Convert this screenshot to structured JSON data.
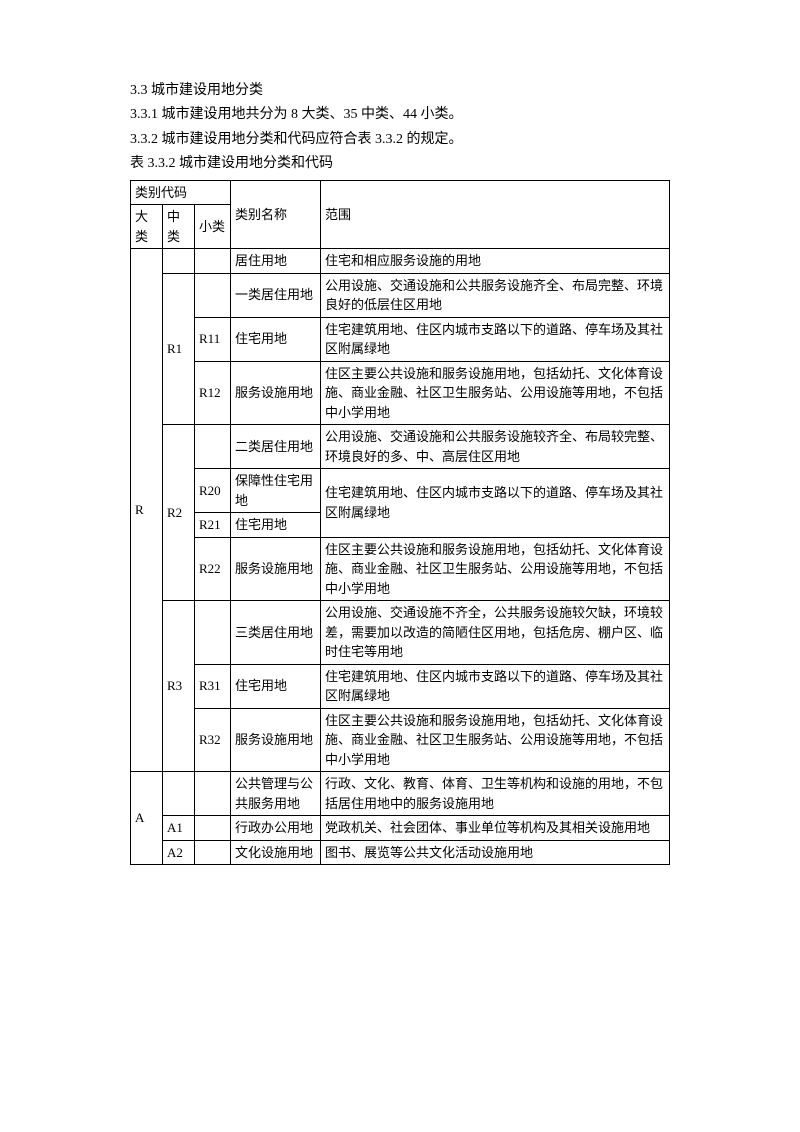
{
  "intro": {
    "l1": "3.3 城市建设用地分类",
    "l2": "3.3.1 城市建设用地共分为 8 大类、35 中类、44 小类。",
    "l3": "3.3.2 城市建设用地分类和代码应符合表 3.3.2 的规定。",
    "l4": "表 3.3.2 城市建设用地分类和代码"
  },
  "headers": {
    "code_group": "类别代码",
    "name": "类别名称",
    "scope": "范围",
    "da": "大类",
    "zhong": "中类",
    "xiao": "小类"
  },
  "table": {
    "R": {
      "code": "R",
      "name": "居住用地",
      "scope": "住宅和相应服务设施的用地",
      "R1": {
        "code": "R1",
        "name": "一类居住用地",
        "scope": "公用设施、交通设施和公共服务设施齐全、布局完整、环境良好的低层住区用地",
        "R11": {
          "code": "R11",
          "name": "住宅用地",
          "scope": "住宅建筑用地、住区内城市支路以下的道路、停车场及其社区附属绿地"
        },
        "R12": {
          "code": "R12",
          "name": "服务设施用地",
          "scope": "住区主要公共设施和服务设施用地，包括幼托、文化体育设施、商业金融、社区卫生服务站、公用设施等用地，不包括中小学用地"
        }
      },
      "R2": {
        "code": "R2",
        "name": "二类居住用地",
        "scope": "公用设施、交通设施和公共服务设施较齐全、布局较完整、环境良好的多、中、高层住区用地",
        "R20": {
          "code": "R20",
          "name": "保障性住宅用地",
          "scope": "住宅建筑用地、住区内城市支路以下的道路、停车场及其社区附属绿地"
        },
        "R21": {
          "code": "R21",
          "name": "住宅用地"
        },
        "R22": {
          "code": "R22",
          "name": "服务设施用地",
          "scope": "住区主要公共设施和服务设施用地，包括幼托、文化体育设施、商业金融、社区卫生服务站、公用设施等用地，不包括中小学用地"
        }
      },
      "R3": {
        "code": "R3",
        "name": "三类居住用地",
        "scope": "公用设施、交通设施不齐全，公共服务设施较欠缺，环境较差，需要加以改造的简陋住区用地，包括危房、棚户区、临时住宅等用地",
        "R31": {
          "code": "R31",
          "name": "住宅用地",
          "scope": "住宅建筑用地、住区内城市支路以下的道路、停车场及其社区附属绿地"
        },
        "R32": {
          "code": "R32",
          "name": "服务设施用地",
          "scope": "住区主要公共设施和服务设施用地，包括幼托、文化体育设施、商业金融、社区卫生服务站、公用设施等用地，不包括中小学用地"
        }
      }
    },
    "A": {
      "code": "A",
      "name": "公共管理与公共服务用地",
      "scope": "行政、文化、教育、体育、卫生等机构和设施的用地，不包括居住用地中的服务设施用地",
      "A1": {
        "code": "A1",
        "name": "行政办公用地",
        "scope": "党政机关、社会团体、事业单位等机构及其相关设施用地"
      },
      "A2": {
        "code": "A2",
        "name": "文化设施用地",
        "scope": "图书、展览等公共文化活动设施用地"
      }
    }
  }
}
